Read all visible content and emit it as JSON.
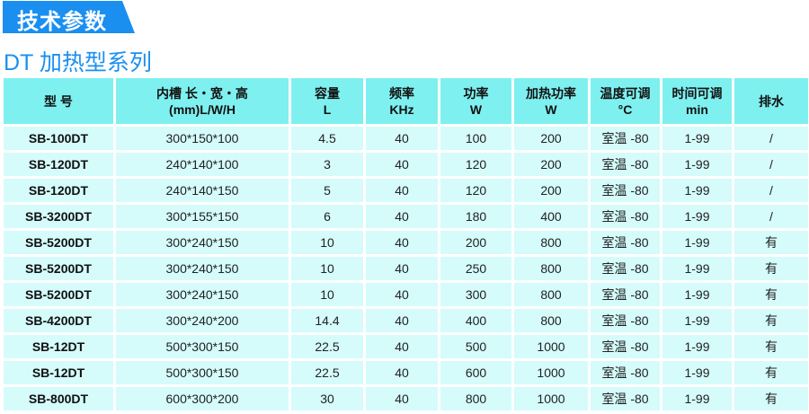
{
  "banner": {
    "title": "技术参数"
  },
  "subtitle": "DT 加热型系列",
  "colors": {
    "banner": "#1a8ff0",
    "header": "#7ff0f0",
    "row": "#d5fbfb"
  },
  "table": {
    "headers": [
      [
        "型  号",
        ""
      ],
      [
        "内槽 长・宽・高",
        "(mm)L/W/H"
      ],
      [
        "容量",
        "L"
      ],
      [
        "频率",
        "KHz"
      ],
      [
        "功率",
        "W"
      ],
      [
        "加热功率",
        "W"
      ],
      [
        "温度可调",
        "°C"
      ],
      [
        "时间可调",
        "min"
      ],
      [
        "排水",
        ""
      ]
    ],
    "rows": [
      [
        "SB-100DT",
        "300*150*100",
        "4.5",
        "40",
        "100",
        "200",
        "室温 -80",
        "1-99",
        "/"
      ],
      [
        "SB-120DT",
        "240*140*100",
        "3",
        "40",
        "120",
        "200",
        "室温 -80",
        "1-99",
        "/"
      ],
      [
        "SB-120DT",
        "240*140*150",
        "5",
        "40",
        "120",
        "200",
        "室温 -80",
        "1-99",
        "/"
      ],
      [
        "SB-3200DT",
        "300*155*150",
        "6",
        "40",
        "180",
        "400",
        "室温 -80",
        "1-99",
        "/"
      ],
      [
        "SB-5200DT",
        "300*240*150",
        "10",
        "40",
        "200",
        "800",
        "室温 -80",
        "1-99",
        "有"
      ],
      [
        "SB-5200DT",
        "300*240*150",
        "10",
        "40",
        "250",
        "800",
        "室温 -80",
        "1-99",
        "有"
      ],
      [
        "SB-5200DT",
        "300*240*150",
        "10",
        "40",
        "300",
        "800",
        "室温 -80",
        "1-99",
        "有"
      ],
      [
        "SB-4200DT",
        "300*240*200",
        "14.4",
        "40",
        "400",
        "800",
        "室温 -80",
        "1-99",
        "有"
      ],
      [
        "SB-12DT",
        "500*300*150",
        "22.5",
        "40",
        "500",
        "1000",
        "室温 -80",
        "1-99",
        "有"
      ],
      [
        "SB-12DT",
        "500*300*150",
        "22.5",
        "40",
        "600",
        "1000",
        "室温 -80",
        "1-99",
        "有"
      ],
      [
        "SB-800DT",
        "600*300*200",
        "30",
        "40",
        "800",
        "1000",
        "室温 -80",
        "1-99",
        "有"
      ]
    ]
  }
}
